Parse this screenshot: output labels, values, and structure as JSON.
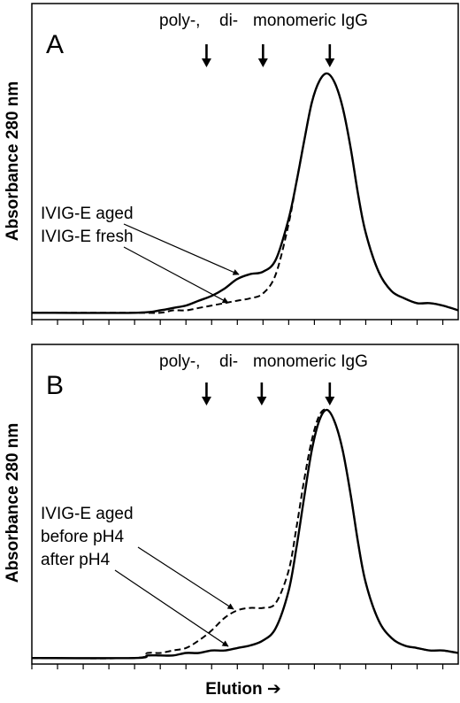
{
  "chart_data": [
    {
      "type": "line",
      "panel_label": "A",
      "ylabel": "Absorbance 280 nm",
      "xlabel": "",
      "peak_markers": [
        {
          "label": "poly-,",
          "x": 7.8
        },
        {
          "label": "di-",
          "x": 10.0
        },
        {
          "label": "monomeric IgG",
          "x": 12.6
        }
      ],
      "xlim": [
        1,
        17.6
      ],
      "ylim": [
        0,
        1
      ],
      "series": [
        {
          "name": "IVIG-E aged",
          "style": "solid",
          "x": [
            1,
            5,
            6,
            6.5,
            7,
            7.5,
            8,
            8.5,
            9,
            9.5,
            10,
            10.5,
            11,
            11.3,
            11.6,
            11.9,
            12.2,
            12.5,
            12.8,
            13.1,
            13.4,
            13.7,
            14,
            14.5,
            15,
            15.5,
            16,
            16.5,
            17,
            17.6
          ],
          "values": [
            0.01,
            0.01,
            0.02,
            0.03,
            0.04,
            0.06,
            0.08,
            0.11,
            0.15,
            0.17,
            0.18,
            0.23,
            0.4,
            0.55,
            0.72,
            0.88,
            0.97,
            1.0,
            0.96,
            0.86,
            0.7,
            0.5,
            0.34,
            0.18,
            0.1,
            0.07,
            0.05,
            0.05,
            0.04,
            0.02
          ]
        },
        {
          "name": "IVIG-E fresh",
          "style": "dashed",
          "x": [
            1,
            5,
            6,
            6.5,
            7,
            7.5,
            8,
            8.5,
            9,
            9.5,
            10,
            10.5,
            11,
            11.3,
            11.6,
            11.9,
            12.2,
            12.5,
            12.8,
            13.1,
            13.4,
            13.7,
            14,
            14.5,
            15,
            15.5,
            16,
            16.5,
            17,
            17.6
          ],
          "values": [
            0.01,
            0.01,
            0.01,
            0.02,
            0.02,
            0.03,
            0.04,
            0.05,
            0.06,
            0.07,
            0.09,
            0.17,
            0.38,
            0.55,
            0.72,
            0.88,
            0.97,
            1.0,
            0.96,
            0.86,
            0.7,
            0.5,
            0.34,
            0.18,
            0.1,
            0.07,
            0.05,
            0.05,
            0.04,
            0.02
          ]
        }
      ],
      "annotation_lines": [
        "IVIG-E aged",
        "IVIG-E fresh"
      ]
    },
    {
      "type": "line",
      "panel_label": "B",
      "ylabel": "Absorbance 280 nm",
      "xlabel": "Elution ➔",
      "peak_markers": [
        {
          "label": "poly-,",
          "x": 7.8
        },
        {
          "label": "di-",
          "x": 9.95
        },
        {
          "label": "monomeric IgG",
          "x": 12.6
        }
      ],
      "xlim": [
        1,
        17.6
      ],
      "ylim": [
        0,
        1
      ],
      "series": [
        {
          "name": "before pH4",
          "style": "dashed",
          "x": [
            1,
            5,
            5.5,
            6,
            6.5,
            7,
            7.5,
            8,
            8.5,
            9,
            9.5,
            10,
            10.5,
            11,
            11.3,
            11.6,
            11.9,
            12.2,
            12.5,
            12.8,
            13.1,
            13.4,
            13.7,
            14,
            14.5,
            15,
            15.5,
            16,
            16.5,
            17,
            17.6
          ],
          "values": [
            0.01,
            0.01,
            0.03,
            0.03,
            0.04,
            0.05,
            0.08,
            0.12,
            0.17,
            0.2,
            0.21,
            0.21,
            0.23,
            0.36,
            0.53,
            0.72,
            0.88,
            0.98,
            1.0,
            0.95,
            0.84,
            0.67,
            0.47,
            0.31,
            0.16,
            0.09,
            0.06,
            0.05,
            0.04,
            0.04,
            0.03
          ]
        },
        {
          "name": "after pH4",
          "style": "solid",
          "x": [
            1,
            5,
            5.5,
            6,
            6.5,
            7,
            7.5,
            8,
            8.5,
            9,
            9.5,
            10,
            10.5,
            11,
            11.3,
            11.6,
            11.9,
            12.2,
            12.5,
            12.8,
            13.1,
            13.4,
            13.7,
            14,
            14.5,
            15,
            15.5,
            16,
            16.5,
            17,
            17.6
          ],
          "values": [
            0.01,
            0.01,
            0.02,
            0.02,
            0.02,
            0.03,
            0.03,
            0.04,
            0.04,
            0.05,
            0.06,
            0.08,
            0.13,
            0.28,
            0.45,
            0.65,
            0.84,
            0.96,
            1.0,
            0.95,
            0.84,
            0.67,
            0.47,
            0.31,
            0.16,
            0.09,
            0.06,
            0.05,
            0.04,
            0.04,
            0.03
          ]
        }
      ],
      "annotation_lines": [
        "IVIG-E aged",
        "before pH4",
        "after pH4"
      ]
    }
  ]
}
